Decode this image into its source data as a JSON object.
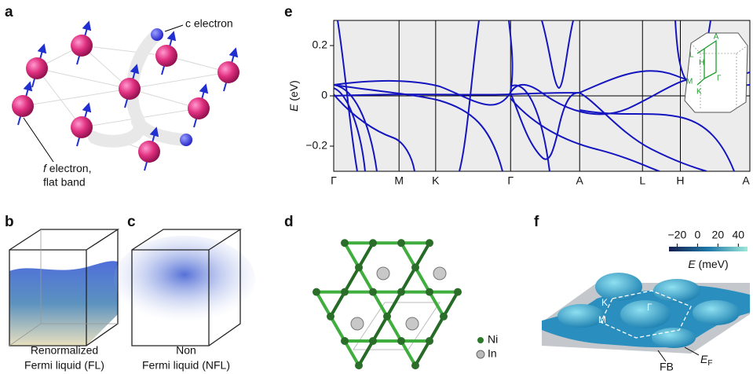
{
  "panels": {
    "a": {
      "label": "a",
      "c_electron": "c electron",
      "f_italic": "f",
      "f_rest": " electron,",
      "f_line2": "flat band"
    },
    "b": {
      "label": "b",
      "caption": [
        "Renormalized",
        "Fermi liquid (FL)"
      ]
    },
    "c": {
      "label": "c",
      "caption": [
        "Non",
        "Fermi liquid (NFL)"
      ]
    },
    "d": {
      "label": "d",
      "legend": [
        "Ni",
        "In"
      ]
    },
    "e": {
      "label": "e",
      "type": "line",
      "ylabel_italic": "E",
      "ylabel_rest": " (eV)",
      "categories": [
        "Γ",
        "M",
        "K",
        "Γ",
        "A",
        "L",
        "H",
        "A"
      ],
      "ylim": [
        -0.3,
        0.3
      ],
      "yticks": [
        0.2,
        0,
        {
          "value": -0.2,
          "label": "−0.2"
        }
      ],
      "inset_labels": [
        "A",
        "L",
        "H",
        "M",
        "Γ",
        "K"
      ]
    },
    "f": {
      "label": "f",
      "colorbar_label_italic": "E",
      "colorbar_label_rest": " (meV)",
      "xlim": [
        -28,
        49
      ],
      "xticks": [
        {
          "value": -20,
          "label": "−20"
        },
        0,
        20,
        40
      ],
      "points": [
        "K",
        "M",
        "Γ"
      ],
      "ef_main": "E",
      "ef_sub": "F",
      "fb": "FB"
    }
  }
}
